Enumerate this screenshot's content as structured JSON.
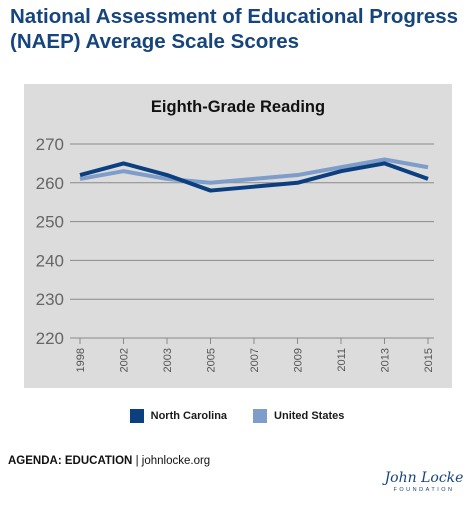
{
  "page_title": "National Assessment of Educational Progress (NAEP) Average Scale Scores",
  "chart_data": {
    "type": "line",
    "title": "Eighth-Grade Reading",
    "categories": [
      "1998",
      "2002",
      "2003",
      "2005",
      "2007",
      "2009",
      "2011",
      "2013",
      "2015"
    ],
    "series": [
      {
        "name": "North Carolina",
        "values": [
          262,
          265,
          262,
          258,
          259,
          260,
          263,
          265,
          261
        ],
        "color": "#0b3f80"
      },
      {
        "name": "United States",
        "values": [
          261,
          263,
          261,
          260,
          261,
          262,
          264,
          266,
          264
        ],
        "color": "#7e9dc9"
      }
    ],
    "yticks": [
      220,
      230,
      240,
      250,
      260,
      270
    ],
    "ylim": [
      220,
      270
    ],
    "grid": true,
    "legend_position": "bottom",
    "xlabel": "",
    "ylabel": ""
  },
  "footer": {
    "agenda": "AGENDA: EDUCATION",
    "separator": "|",
    "site": "johnlocke.org"
  },
  "logo": {
    "script": "John Locke",
    "foundation": "FOUNDATION"
  }
}
